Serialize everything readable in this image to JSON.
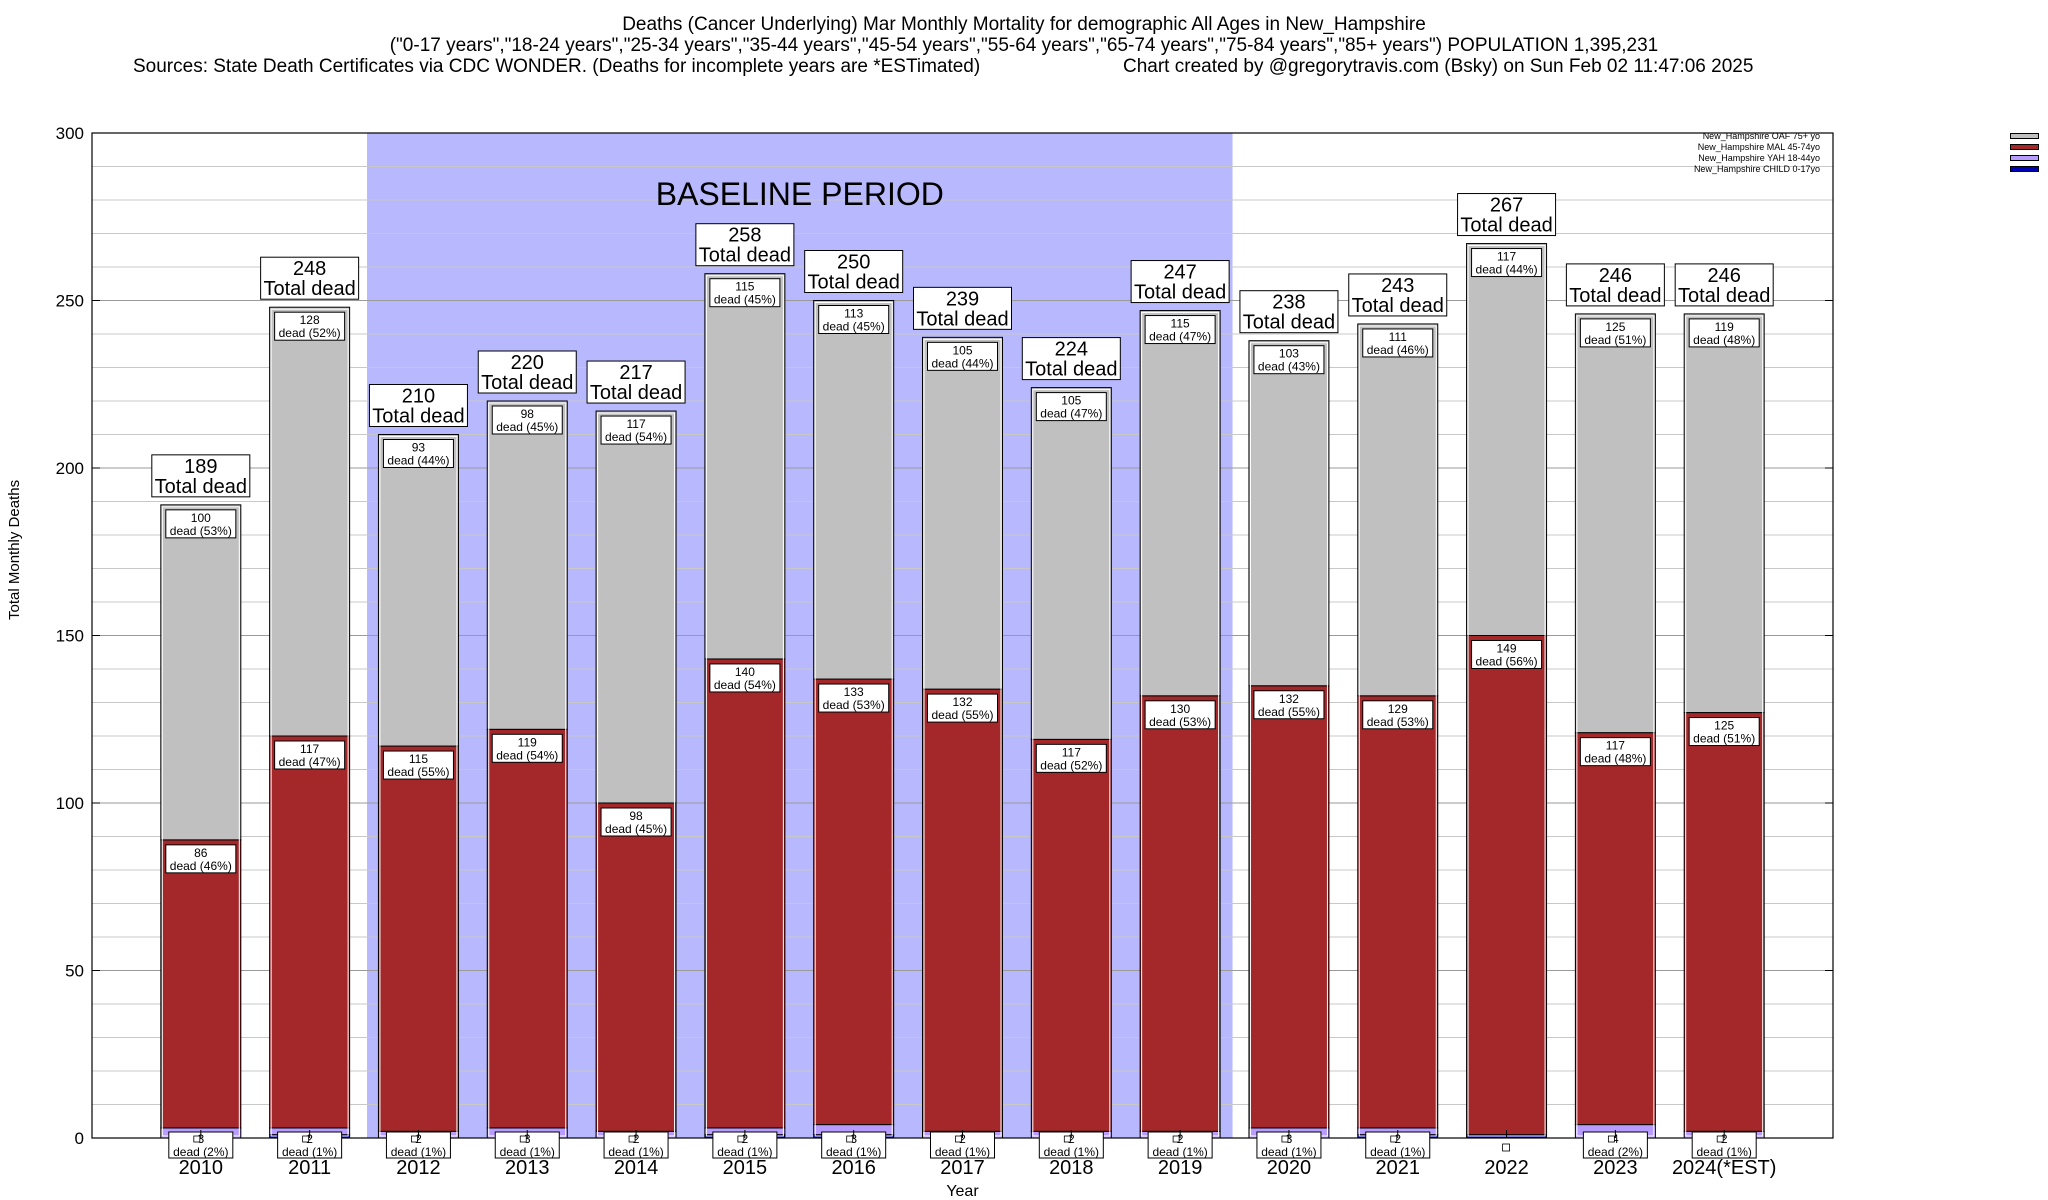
{
  "header": {
    "line1": "Deaths (Cancer Underlying) Mar Monthly Mortality for demographic All Ages in New_Hampshire",
    "line2": "(\"0-17 years\",\"18-24 years\",\"25-34 years\",\"35-44 years\",\"45-54 years\",\"55-64 years\",\"65-74 years\",\"75-84 years\",\"85+ years\") POPULATION 1,395,231",
    "line3_left": "Sources: State Death Certificates via CDC WONDER. (Deaths for incomplete years are *ESTimated)",
    "line3_right": "Chart created by @gregorytravis.com (Bsky) on Sun Feb 02 11:47:06 2025"
  },
  "chart_data": {
    "type": "bar",
    "stacked": true,
    "categories": [
      "2010",
      "2011",
      "2012",
      "2013",
      "2014",
      "2015",
      "2016",
      "2017",
      "2018",
      "2019",
      "2020",
      "2021",
      "2022",
      "2023",
      "2024(*EST)"
    ],
    "series": [
      {
        "name": "New_Hampshire CHILD 0-17yo",
        "color": "#0000b4",
        "values": [
          0,
          1,
          0,
          0,
          0,
          1,
          1,
          0,
          0,
          0,
          0,
          1,
          1,
          0,
          0
        ]
      },
      {
        "name": "New_Hampshire YAH 18-44yo",
        "color": "#b89cff",
        "values": [
          3,
          2,
          2,
          3,
          2,
          2,
          3,
          2,
          2,
          2,
          3,
          2,
          0,
          4,
          2
        ],
        "pct": [
          "2%",
          "1%",
          "1%",
          "1%",
          "1%",
          "1%",
          "1%",
          "1%",
          "1%",
          "1%",
          "1%",
          "1%",
          "",
          "2%",
          "1%"
        ]
      },
      {
        "name": "New_Hampshire MAL 45-74yo",
        "color": "#a4282a",
        "values": [
          86,
          117,
          115,
          119,
          98,
          140,
          133,
          132,
          117,
          130,
          132,
          129,
          149,
          117,
          125
        ],
        "pct": [
          "46%",
          "47%",
          "55%",
          "54%",
          "45%",
          "54%",
          "53%",
          "55%",
          "52%",
          "53%",
          "55%",
          "53%",
          "56%",
          "48%",
          "51%"
        ]
      },
      {
        "name": "New_Hampshire OAF 75+ yo",
        "color": "#c0c0c0",
        "values": [
          100,
          128,
          93,
          98,
          117,
          115,
          113,
          105,
          105,
          115,
          103,
          111,
          117,
          125,
          119
        ],
        "pct": [
          "53%",
          "52%",
          "44%",
          "45%",
          "54%",
          "45%",
          "45%",
          "44%",
          "47%",
          "47%",
          "43%",
          "46%",
          "44%",
          "51%",
          "48%"
        ]
      }
    ],
    "totals": [
      189,
      248,
      210,
      220,
      217,
      258,
      250,
      239,
      224,
      247,
      238,
      243,
      267,
      246,
      246
    ],
    "total_label": "Total dead",
    "dead_word": "dead",
    "ylim": [
      0,
      300
    ],
    "yticks": [
      0,
      50,
      100,
      150,
      200,
      250,
      300
    ],
    "xlabel": "Year",
    "ylabel": "Total Monthly Deaths",
    "baseline": {
      "label": "BASELINE PERIOD",
      "from": "2012",
      "to": "2019",
      "color": "#b8b8ff"
    },
    "grid": true,
    "legend_position": "top-right"
  }
}
